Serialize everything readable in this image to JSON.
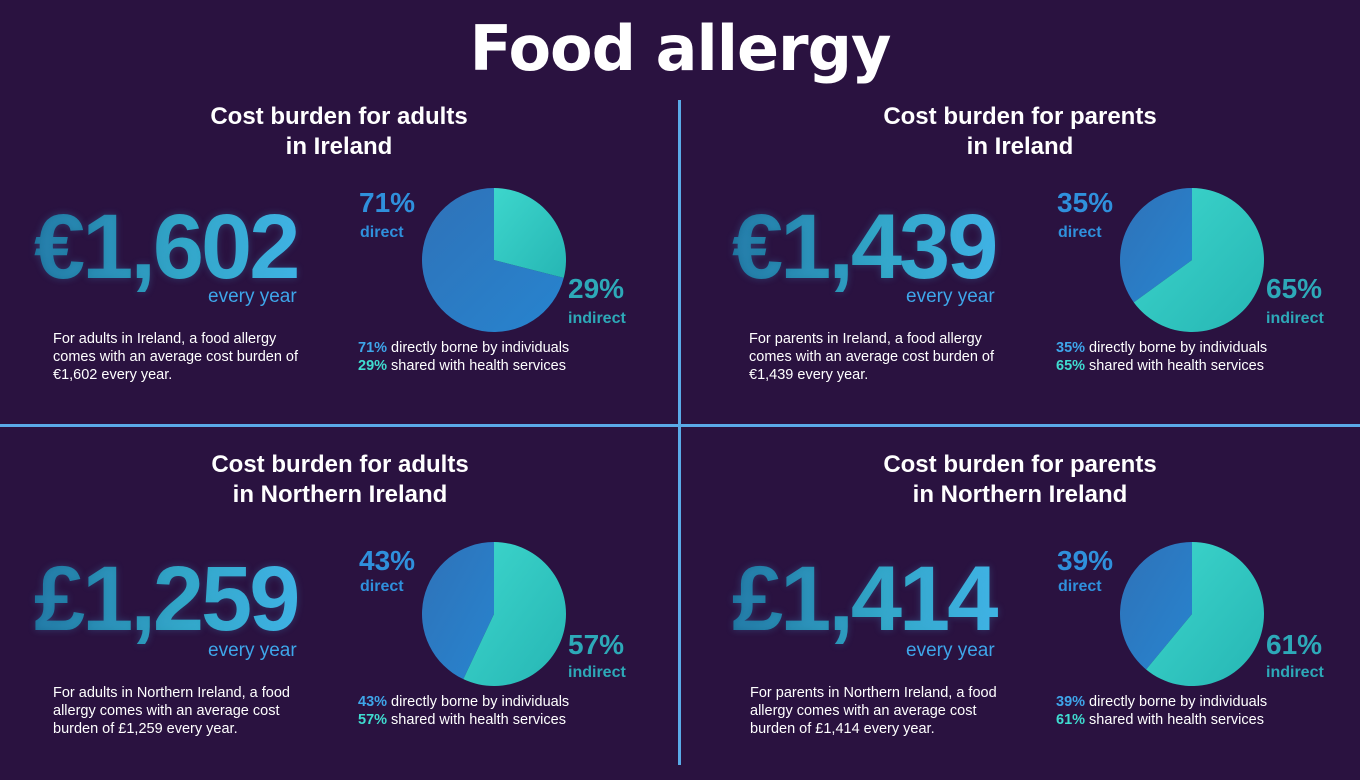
{
  "title": "Food allergy",
  "colors": {
    "background": "#2a1240",
    "divider": "#5aaae8",
    "direct_slice": "#2784cf",
    "indirect_slice": "#3dd6cc",
    "direct_text": "#2f90dc",
    "indirect_text": "#2da9b8"
  },
  "panels": [
    {
      "title_line1": "Cost burden for adults",
      "title_line2": "in Ireland",
      "amount": "€1,602",
      "period": "every year",
      "description": "For adults in Ireland, a food allergy comes with an average cost burden of €1,602 every year.",
      "direct_pct": "71%",
      "direct_label": "direct",
      "indirect_pct": "29%",
      "indirect_label": "indirect",
      "legend_direct_pct": "71%",
      "legend_direct_text": " directly borne by individuals",
      "legend_indirect_pct": "29%",
      "legend_indirect_text": " shared with health services"
    },
    {
      "title_line1": "Cost burden for parents",
      "title_line2": "in Ireland",
      "amount": "€1,439",
      "period": "every year",
      "description": "For parents in Ireland, a food allergy comes with an average cost burden of €1,439 every year.",
      "direct_pct": "35%",
      "direct_label": "direct",
      "indirect_pct": "65%",
      "indirect_label": "indirect",
      "legend_direct_pct": "35%",
      "legend_direct_text": " directly borne by individuals",
      "legend_indirect_pct": "65%",
      "legend_indirect_text": " shared with health services"
    },
    {
      "title_line1": "Cost burden for adults",
      "title_line2": "in Northern Ireland",
      "amount": "£1,259",
      "period": "every year",
      "description": "For adults in Northern Ireland, a food allergy comes with an average cost burden of £1,259 every year.",
      "direct_pct": "43%",
      "direct_label": "direct",
      "indirect_pct": "57%",
      "indirect_label": "indirect",
      "legend_direct_pct": "43%",
      "legend_direct_text": " directly borne by individuals",
      "legend_indirect_pct": "57%",
      "legend_indirect_text": " shared with health services"
    },
    {
      "title_line1": "Cost burden for parents",
      "title_line2": "in Northern Ireland",
      "amount": "£1,414",
      "period": "every year",
      "description": "For parents in Northern Ireland, a food allergy comes with an average cost burden of £1,414 every year.",
      "direct_pct": "39%",
      "direct_label": "direct",
      "indirect_pct": "61%",
      "indirect_label": "indirect",
      "legend_direct_pct": "39%",
      "legend_direct_text": " directly borne by individuals",
      "legend_indirect_pct": "61%",
      "legend_indirect_text": " shared with health services"
    }
  ],
  "chart_data": [
    {
      "type": "pie",
      "title": "Cost burden for adults in Ireland",
      "categories": [
        "direct",
        "indirect"
      ],
      "values": [
        71,
        29
      ]
    },
    {
      "type": "pie",
      "title": "Cost burden for parents in Ireland",
      "categories": [
        "direct",
        "indirect"
      ],
      "values": [
        35,
        65
      ]
    },
    {
      "type": "pie",
      "title": "Cost burden for adults in Northern Ireland",
      "categories": [
        "direct",
        "indirect"
      ],
      "values": [
        43,
        57
      ]
    },
    {
      "type": "pie",
      "title": "Cost burden for parents in Northern Ireland",
      "categories": [
        "direct",
        "indirect"
      ],
      "values": [
        39,
        61
      ]
    }
  ]
}
